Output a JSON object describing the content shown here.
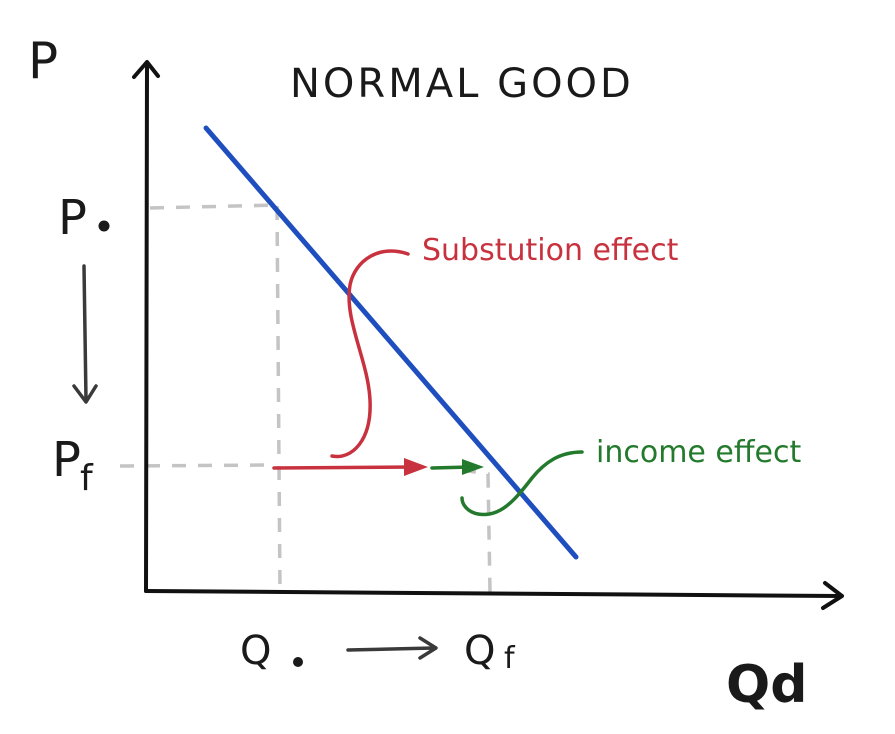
{
  "title": "NORMAL GOOD",
  "axes": {
    "y_label": "P",
    "x_label": "Qd"
  },
  "prices": {
    "initial": "P",
    "initial_sub": "o",
    "final": "P",
    "final_sub": "f"
  },
  "quantities": {
    "initial": "Q",
    "initial_sub": "o",
    "final": "Q",
    "final_sub": "f"
  },
  "annotations": {
    "substitution": "Substution effect",
    "income": "income effect"
  },
  "colors": {
    "demand_curve": "#1f4fbf",
    "substitution_effect": "#c8323e",
    "income_effect": "#237a2c",
    "guides": "#c4c4c4",
    "ink": "#1a1a1a"
  }
}
